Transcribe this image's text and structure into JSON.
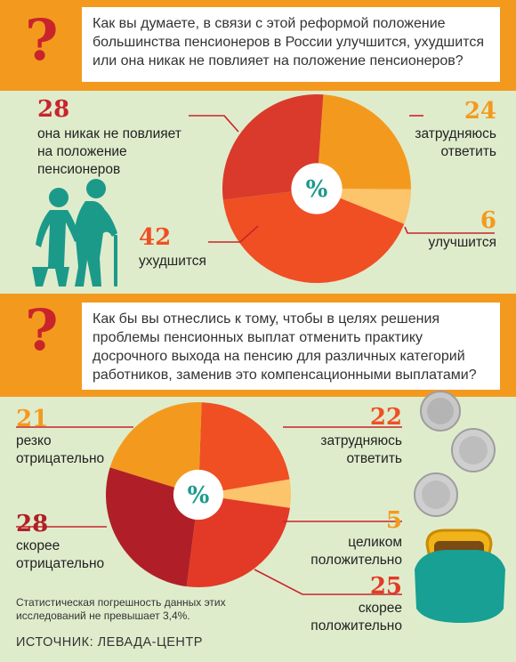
{
  "q1": {
    "question": "Как вы думаете, в связи с этой реформой положение большинства пенсионеров в России улучшится, ухудшится или она никак не повлияет на положение пенсионеров?",
    "question_lines": [
      "Как вы думаете, в связи с этой реформой положение",
      "большинства пенсионеров в России улучшится, ухудшится",
      "или она никак не повлияет на положение пенсионеров?"
    ]
  },
  "q2": {
    "question_lines": [
      "Как бы вы отнеслись к тому, чтобы в целях решения",
      "проблемы пенсионных выплат отменить практику",
      "досрочного выхода на пенсию для различных категорий",
      "работников, заменив это компенсационными выплатами?"
    ]
  },
  "question_mark": "?",
  "note": [
    "Статистическая погрешность данных этих",
    "исследований не превышает 3,4%."
  ],
  "source": "ИСТОЧНИК: ЛЕВАДА-ЦЕНТР",
  "colors": {
    "orange": "#f39a1e",
    "dark_red": "#c9242b",
    "green_band": "#dfeccc",
    "teal": "#1b9a8a"
  },
  "icons": [
    "elderly-couple-icon",
    "coins-icon",
    "purse-icon"
  ],
  "chart_data": [
    {
      "type": "pie",
      "center_label": "%",
      "slices": [
        {
          "value": 24,
          "label": "затрудняюсь ответить",
          "lines": [
            "затрудняюсь",
            "ответить"
          ],
          "color": "#f39a1e"
        },
        {
          "value": 6,
          "label": "улучшится",
          "lines": [
            "улучшится"
          ],
          "color": "#fcc46b"
        },
        {
          "value": 42,
          "label": "ухудшится",
          "lines": [
            "ухудшится"
          ],
          "color": "#ef4f23"
        },
        {
          "value": 28,
          "label": "она никак не повлияет на положение пенсионеров",
          "lines": [
            "она никак не повлияет",
            "на положение",
            "пенсионеров"
          ],
          "color": "#d93a2b"
        }
      ]
    },
    {
      "type": "pie",
      "center_label": "%",
      "slices": [
        {
          "value": 22,
          "label": "затрудняюсь ответить",
          "lines": [
            "затрудняюсь",
            "ответить"
          ],
          "color": "#ef4f23"
        },
        {
          "value": 5,
          "label": "целиком положительно",
          "lines": [
            "целиком",
            "положительно"
          ],
          "color": "#fcc46b"
        },
        {
          "value": 25,
          "label": "скорее положительно",
          "lines": [
            "скорее",
            "положительно"
          ],
          "color": "#e23a26"
        },
        {
          "value": 28,
          "label": "скорее отрицательно",
          "lines": [
            "скорее",
            "отрицательно"
          ],
          "color": "#b01f27"
        },
        {
          "value": 21,
          "label": "резко отрицательно",
          "lines": [
            "резко",
            "отрицательно"
          ],
          "color": "#f39a1e"
        }
      ]
    }
  ]
}
